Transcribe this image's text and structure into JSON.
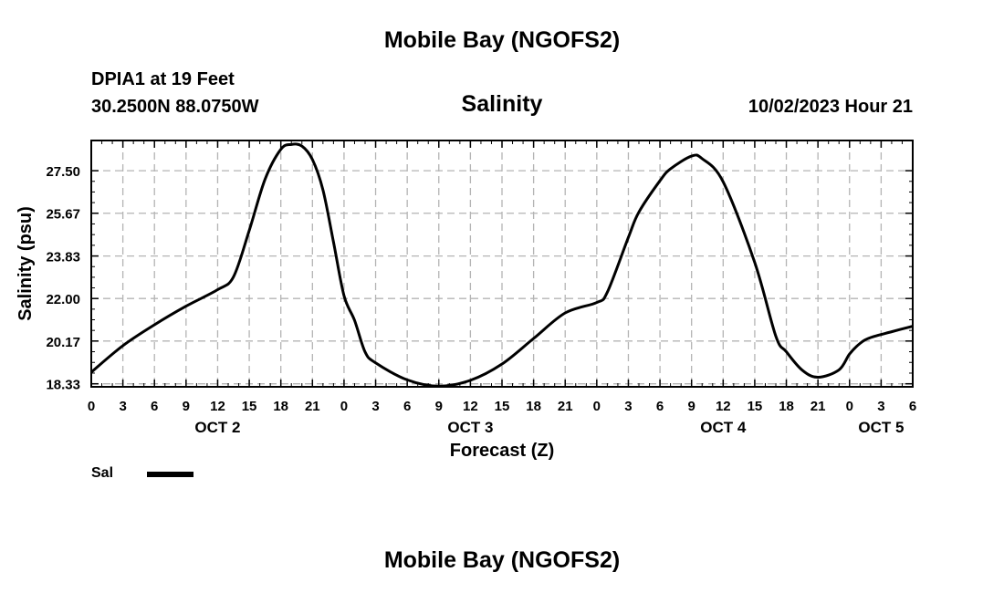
{
  "header": {
    "title": "Mobile Bay (NGOFS2)",
    "station_name": "DPIA1 at 19 Feet",
    "station_coords": "30.2500N  88.0750W",
    "run_time": "10/02/2023 Hour 21"
  },
  "footer": {
    "title": "Mobile Bay (NGOFS2)"
  },
  "chart_data": {
    "type": "line",
    "title": "Salinity",
    "xlabel": "Forecast (Z)",
    "ylabel": "Salinity (psu)",
    "xlim": [
      0,
      78
    ],
    "ylim": [
      18.2,
      28.8
    ],
    "grid": true,
    "y_ticks": [
      18.33,
      20.17,
      22.0,
      23.83,
      25.67,
      27.5
    ],
    "y_tick_labels": [
      "18.33",
      "20.17",
      "22.00",
      "23.83",
      "25.67",
      "27.50"
    ],
    "x_ticks": [
      0,
      3,
      6,
      9,
      12,
      15,
      18,
      21,
      24,
      27,
      30,
      33,
      36,
      39,
      42,
      45,
      48,
      51,
      54,
      57,
      60,
      63,
      66,
      69,
      72,
      75,
      78
    ],
    "x_tick_labels": [
      "0",
      "3",
      "6",
      "9",
      "12",
      "15",
      "18",
      "21",
      "0",
      "3",
      "6",
      "9",
      "12",
      "15",
      "18",
      "21",
      "0",
      "3",
      "6",
      "9",
      "12",
      "15",
      "18",
      "21",
      "0",
      "3",
      "6"
    ],
    "day_labels": [
      {
        "label": "OCT 2",
        "hour": 12
      },
      {
        "label": "OCT 3",
        "hour": 36
      },
      {
        "label": "OCT 4",
        "hour": 60
      },
      {
        "label": "OCT 5",
        "hour": 75
      }
    ],
    "series": [
      {
        "name": "Sal",
        "x": [
          0,
          3,
          6,
          9,
          12,
          13.5,
          15,
          16.5,
          18,
          19,
          20,
          21,
          22,
          23,
          24,
          25,
          26,
          27,
          30,
          33,
          36,
          39,
          42,
          45,
          48,
          49,
          51,
          52,
          54,
          55,
          57,
          58,
          60,
          63,
          65,
          66,
          67.5,
          69,
          71,
          72,
          73,
          74,
          76,
          78
        ],
        "y": [
          18.83,
          19.97,
          20.87,
          21.67,
          22.38,
          22.93,
          24.93,
          27.13,
          28.42,
          28.63,
          28.56,
          27.98,
          26.67,
          24.43,
          22.12,
          21.06,
          19.7,
          19.23,
          18.5,
          18.23,
          18.48,
          19.18,
          20.28,
          21.38,
          21.83,
          22.27,
          24.63,
          25.72,
          27.07,
          27.58,
          28.13,
          28.02,
          27.02,
          23.55,
          20.38,
          19.71,
          18.92,
          18.61,
          18.93,
          19.61,
          20.07,
          20.32,
          20.57,
          20.81
        ]
      }
    ],
    "legend": {
      "position": "bottom-left",
      "label": "Sal"
    }
  }
}
